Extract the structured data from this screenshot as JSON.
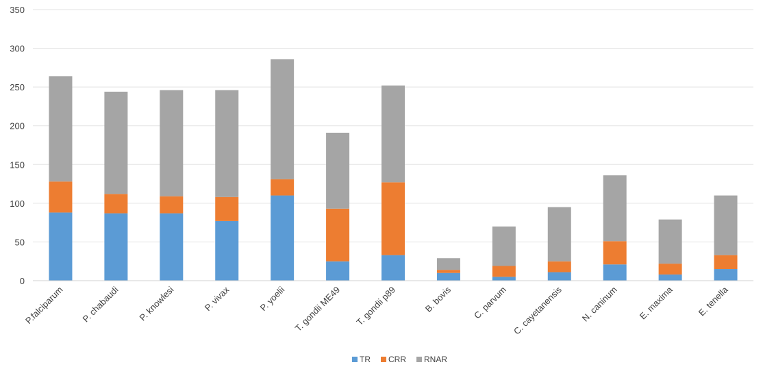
{
  "chart_data": {
    "type": "bar",
    "stacked": true,
    "categories": [
      "P.falciparum",
      "P. chabaudi",
      "P. knowlesi",
      "P. vivax",
      "P. yoelii",
      "T. gondii ME49",
      "T. gondii p89",
      "B. bovis",
      "C. parvum",
      "C. cayetanensis",
      "N. caninum",
      "E. maxima",
      "E. tenella"
    ],
    "series": [
      {
        "name": "TR",
        "color": "#5b9bd5",
        "values": [
          88,
          87,
          87,
          77,
          110,
          25,
          33,
          10,
          5,
          11,
          21,
          8,
          15
        ]
      },
      {
        "name": "CRR",
        "color": "#ed7d31",
        "values": [
          40,
          25,
          22,
          31,
          21,
          68,
          94,
          4,
          14,
          14,
          30,
          14,
          18
        ]
      },
      {
        "name": "RNAR",
        "color": "#a5a5a5",
        "values": [
          136,
          132,
          137,
          138,
          155,
          98,
          125,
          15,
          51,
          70,
          85,
          57,
          77
        ]
      }
    ],
    "ylim": [
      0,
      350
    ],
    "yticks": [
      0,
      50,
      100,
      150,
      200,
      250,
      300,
      350
    ],
    "grid": true,
    "legend_position": "bottom"
  }
}
